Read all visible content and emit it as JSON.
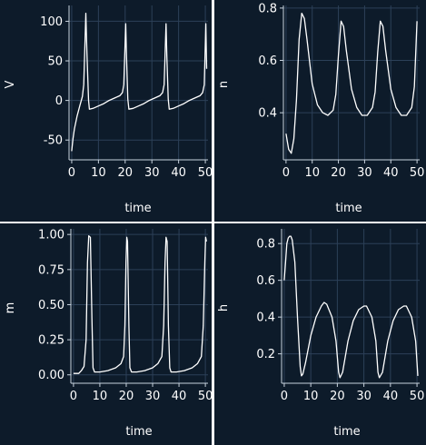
{
  "chart_data": [
    {
      "type": "line",
      "xlabel": "time",
      "ylabel": "V",
      "xlim": [
        -1,
        51
      ],
      "ylim": [
        -75,
        120
      ],
      "xticks": [
        0,
        10,
        20,
        30,
        40,
        50
      ],
      "yticks": [
        -50,
        0,
        50,
        100
      ],
      "grid": true,
      "x": [
        0,
        0.5,
        1,
        2,
        3,
        4,
        4.5,
        5.3,
        5.7,
        6.3,
        6.6,
        8,
        10,
        12,
        14,
        16,
        18,
        19,
        19.5,
        20.2,
        20.5,
        21,
        21.4,
        23,
        25,
        27,
        29,
        31,
        33,
        34,
        34.6,
        35.3,
        35.6,
        36.1,
        36.5,
        38,
        40,
        42,
        44,
        46,
        48,
        49,
        49.6,
        50.2,
        50.5
      ],
      "y": [
        -64,
        -48,
        -36,
        -20,
        -7,
        5,
        20,
        110,
        60,
        0,
        -11,
        -10,
        -7,
        -4,
        0,
        3,
        6,
        10,
        20,
        97,
        55,
        2,
        -11,
        -10,
        -7,
        -4,
        0,
        3,
        6,
        10,
        20,
        97,
        55,
        2,
        -11,
        -10,
        -7,
        -4,
        0,
        3,
        6,
        10,
        20,
        97,
        40
      ]
    },
    {
      "type": "line",
      "xlabel": "time",
      "ylabel": "n",
      "xlim": [
        -1,
        51
      ],
      "ylim": [
        0.22,
        0.81
      ],
      "xticks": [
        0,
        10,
        20,
        30,
        40,
        50
      ],
      "yticks": [
        0.4,
        0.6,
        0.8
      ],
      "grid": true,
      "x": [
        0,
        1,
        2,
        3,
        4,
        5,
        6,
        7,
        8,
        10,
        12,
        14,
        16,
        18,
        19,
        20,
        21,
        22,
        23,
        25,
        27,
        29,
        31,
        33,
        34,
        35,
        36,
        37,
        38,
        40,
        42,
        44,
        46,
        48,
        49,
        50
      ],
      "y": [
        0.32,
        0.26,
        0.245,
        0.3,
        0.45,
        0.68,
        0.78,
        0.76,
        0.68,
        0.51,
        0.43,
        0.4,
        0.39,
        0.41,
        0.47,
        0.62,
        0.75,
        0.73,
        0.64,
        0.49,
        0.42,
        0.39,
        0.39,
        0.42,
        0.48,
        0.63,
        0.75,
        0.73,
        0.64,
        0.49,
        0.42,
        0.39,
        0.39,
        0.42,
        0.5,
        0.75
      ]
    },
    {
      "type": "line",
      "xlabel": "time",
      "ylabel": "m",
      "xlim": [
        -1,
        51
      ],
      "ylim": [
        -0.06,
        1.04
      ],
      "xticks": [
        0,
        10,
        20,
        30,
        40,
        50
      ],
      "yticks": [
        0.0,
        0.25,
        0.5,
        0.75,
        1.0
      ],
      "yticklabels": [
        "0.00",
        "0.25",
        "0.50",
        "0.75",
        "1.00"
      ],
      "grid": true,
      "x": [
        0,
        2,
        3,
        4,
        4.8,
        5.3,
        5.8,
        6.4,
        7,
        7.4,
        8,
        10,
        13,
        16,
        18,
        19,
        19.5,
        19.9,
        20.2,
        20.5,
        21,
        21.4,
        22,
        24,
        27,
        30,
        32,
        33.5,
        34.2,
        34.7,
        35.1,
        35.5,
        36,
        36.5,
        37,
        39,
        42,
        45,
        47,
        48.5,
        49.2,
        49.8,
        50.1,
        50.4
      ],
      "y": [
        0.01,
        0.01,
        0.03,
        0.06,
        0.25,
        0.8,
        0.99,
        0.98,
        0.4,
        0.05,
        0.02,
        0.02,
        0.03,
        0.05,
        0.08,
        0.13,
        0.35,
        0.8,
        0.98,
        0.95,
        0.35,
        0.05,
        0.02,
        0.02,
        0.03,
        0.05,
        0.08,
        0.13,
        0.35,
        0.8,
        0.98,
        0.95,
        0.35,
        0.05,
        0.02,
        0.02,
        0.03,
        0.05,
        0.08,
        0.13,
        0.35,
        0.8,
        0.98,
        0.95
      ]
    },
    {
      "type": "line",
      "xlabel": "time",
      "ylabel": "h",
      "xlim": [
        -1,
        51
      ],
      "ylim": [
        0.04,
        0.88
      ],
      "xticks": [
        0,
        10,
        20,
        30,
        40,
        50
      ],
      "yticks": [
        0.2,
        0.4,
        0.6,
        0.8
      ],
      "grid": true,
      "x": [
        0,
        0.5,
        1,
        1.5,
        2,
        2.5,
        3,
        4,
        5,
        6,
        6.5,
        7,
        8,
        10,
        12,
        14,
        15,
        16,
        18,
        19.5,
        20.5,
        21,
        22,
        24,
        26,
        28,
        30,
        31,
        33,
        34.5,
        35.3,
        35.8,
        37,
        39,
        41,
        43,
        45,
        46,
        48,
        49.5,
        50.3
      ],
      "y": [
        0.6,
        0.7,
        0.8,
        0.83,
        0.84,
        0.84,
        0.82,
        0.7,
        0.4,
        0.13,
        0.08,
        0.09,
        0.15,
        0.3,
        0.4,
        0.46,
        0.48,
        0.47,
        0.4,
        0.27,
        0.1,
        0.07,
        0.1,
        0.27,
        0.38,
        0.44,
        0.46,
        0.46,
        0.4,
        0.27,
        0.1,
        0.07,
        0.1,
        0.27,
        0.38,
        0.44,
        0.46,
        0.46,
        0.4,
        0.27,
        0.08
      ]
    }
  ]
}
